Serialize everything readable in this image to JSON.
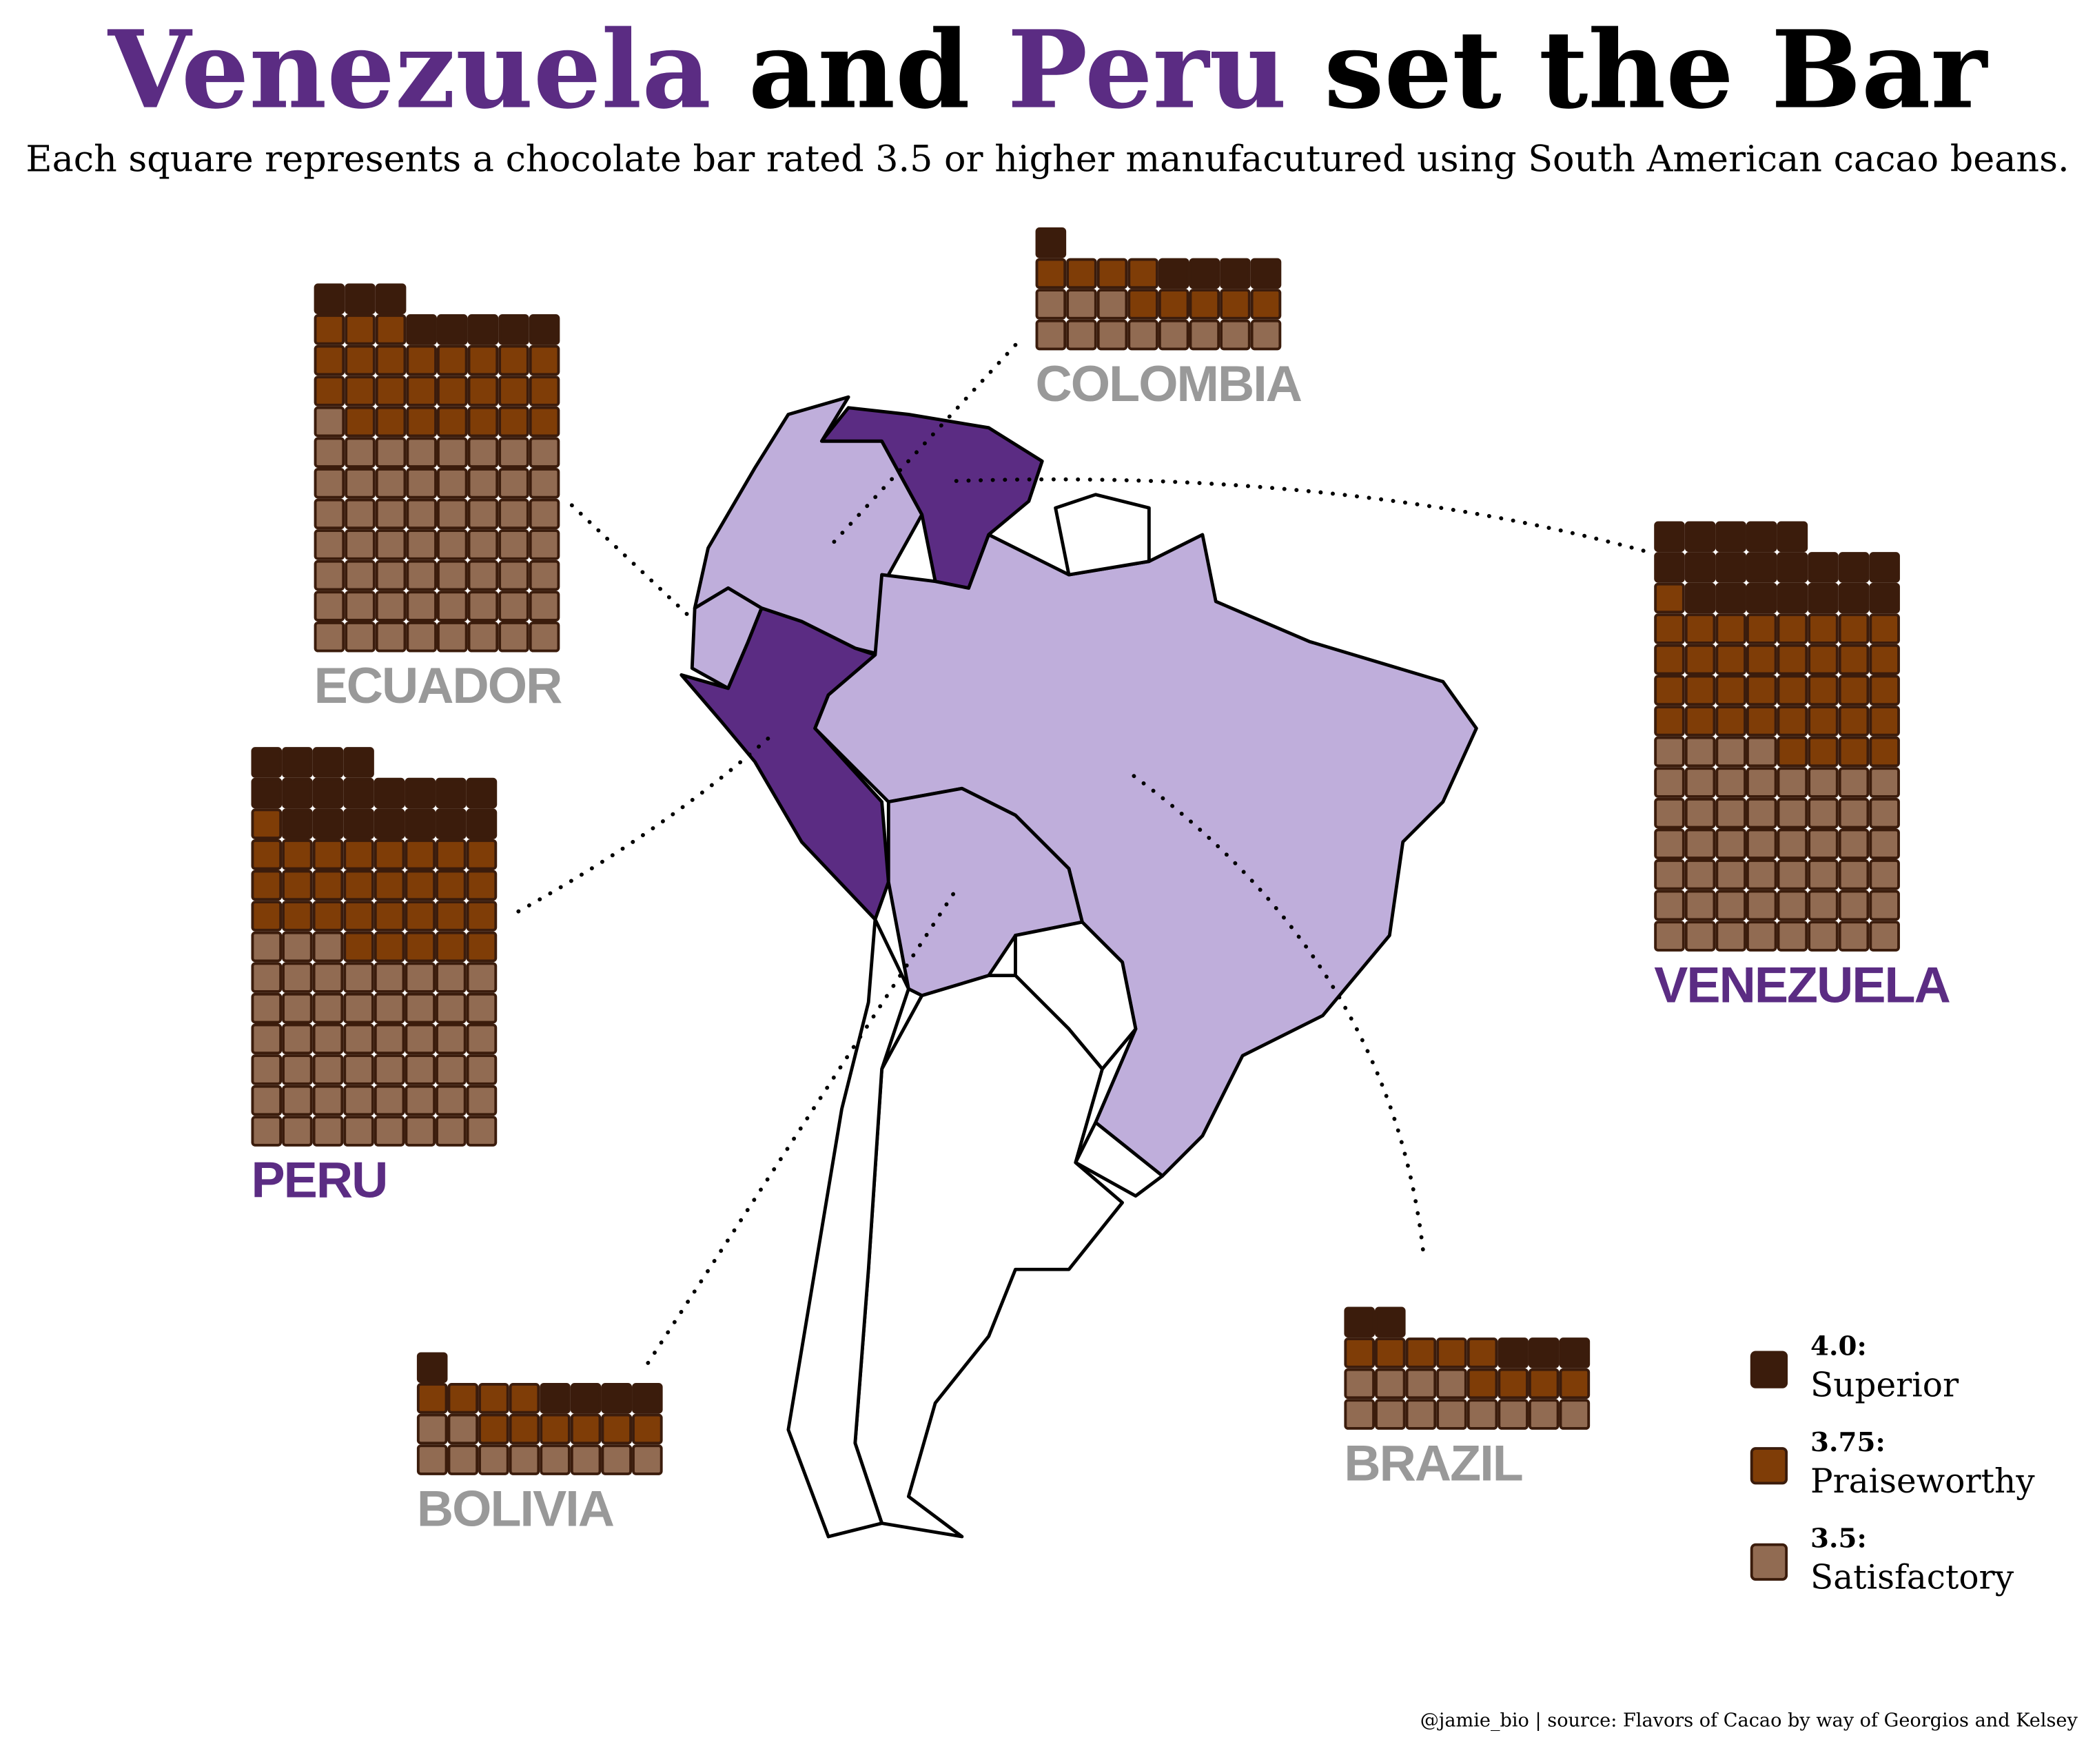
{
  "chart_data": {
    "type": "waffle",
    "title_parts": [
      {
        "text": "Venezuela",
        "color": "#5b2c83"
      },
      {
        "text": "and",
        "color": "#000000"
      },
      {
        "text": "Peru",
        "color": "#5b2c83"
      },
      {
        "text": "set the Bar",
        "color": "#000000"
      }
    ],
    "subtitle": "Each square represents a chocolate bar rated 3.5 or higher manufacutured using South American cacao beans.",
    "categories": [
      "ECUADOR",
      "COLOMBIA",
      "VENEZUELA",
      "PERU",
      "BOLIVIA",
      "BRAZIL"
    ],
    "category_label_colors": [
      "#999999",
      "#999999",
      "#5b2c83",
      "#5b2c83",
      "#999999",
      "#999999"
    ],
    "category_map_colors": [
      "#bfaedb",
      "#bfaedb",
      "#5b2c83",
      "#5b2c83",
      "#bfaedb",
      "#bfaedb"
    ],
    "series": [
      {
        "legend_value": "4.0:",
        "name": "Superior",
        "color": "#3b1c0c",
        "values": [
          8,
          5,
          20,
          19,
          5,
          5
        ]
      },
      {
        "legend_value": "3.75:",
        "name": "Praiseworthy",
        "color": "#7f3d07",
        "values": [
          26,
          9,
          37,
          30,
          10,
          9
        ]
      },
      {
        "legend_value": "3.5:",
        "name": "Satisfactory",
        "color": "#916b52",
        "values": [
          57,
          11,
          52,
          51,
          10,
          12
        ]
      }
    ],
    "credit": "@jamie_bio | source:  Flavors of Cacao by way of Georgios and Kelsey"
  }
}
